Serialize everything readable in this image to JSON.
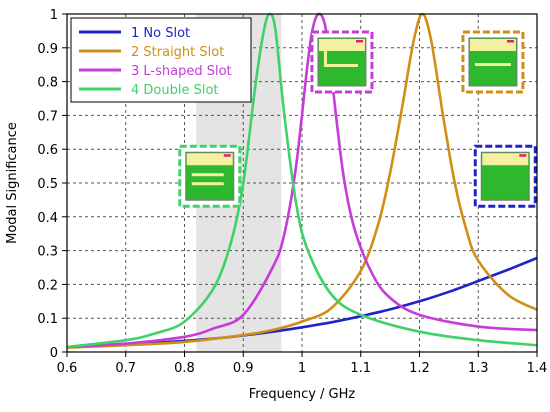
{
  "chart_data": {
    "type": "line",
    "title": "",
    "xlabel": "Frequency / GHz",
    "ylabel": "Modal Significance",
    "xlim": [
      0.6,
      1.4
    ],
    "ylim": [
      0,
      1
    ],
    "xticks": [
      "0.6",
      "0.7",
      "0.8",
      "0.9",
      "1",
      "1.1",
      "1.2",
      "1.3",
      "1.4"
    ],
    "yticks": [
      "0",
      "0.1",
      "0.2",
      "0.3",
      "0.4",
      "0.5",
      "0.6",
      "0.7",
      "0.8",
      "0.9",
      "1"
    ],
    "grid": true,
    "legend_position": "top-left",
    "shaded_band": [
      0.82,
      0.965
    ],
    "series": [
      {
        "name": "1 No Slot",
        "color": "#1f24c8",
        "x": [
          0.6,
          0.65,
          0.7,
          0.75,
          0.8,
          0.85,
          0.9,
          0.95,
          1.0,
          1.05,
          1.1,
          1.15,
          1.2,
          1.25,
          1.3,
          1.35,
          1.4
        ],
        "y": [
          0.015,
          0.018,
          0.022,
          0.027,
          0.033,
          0.04,
          0.049,
          0.06,
          0.073,
          0.088,
          0.106,
          0.126,
          0.15,
          0.178,
          0.21,
          0.243,
          0.278
        ]
      },
      {
        "name": "2 Straight Slot",
        "color": "#d08f14",
        "x": [
          0.6,
          0.7,
          0.8,
          0.9,
          0.95,
          1.0,
          1.05,
          1.1,
          1.13,
          1.15,
          1.17,
          1.19,
          1.205,
          1.22,
          1.24,
          1.26,
          1.28,
          1.3,
          1.35,
          1.4
        ],
        "y": [
          0.013,
          0.02,
          0.03,
          0.05,
          0.065,
          0.09,
          0.13,
          0.24,
          0.38,
          0.53,
          0.72,
          0.92,
          1.0,
          0.92,
          0.7,
          0.5,
          0.36,
          0.27,
          0.17,
          0.125
        ]
      },
      {
        "name": "3 L-shaped Slot",
        "color": "#c53cd8",
        "x": [
          0.6,
          0.7,
          0.8,
          0.85,
          0.9,
          0.95,
          0.97,
          0.99,
          1.01,
          1.02,
          1.03,
          1.04,
          1.05,
          1.07,
          1.09,
          1.12,
          1.15,
          1.2,
          1.3,
          1.4
        ],
        "y": [
          0.015,
          0.025,
          0.045,
          0.07,
          0.11,
          0.25,
          0.35,
          0.55,
          0.86,
          0.97,
          1.0,
          0.96,
          0.82,
          0.53,
          0.36,
          0.23,
          0.16,
          0.11,
          0.075,
          0.065
        ]
      },
      {
        "name": "4 Double Slot",
        "color": "#3fd16a",
        "x": [
          0.6,
          0.7,
          0.75,
          0.8,
          0.85,
          0.88,
          0.9,
          0.92,
          0.935,
          0.945,
          0.955,
          0.97,
          0.99,
          1.01,
          1.05,
          1.1,
          1.2,
          1.3,
          1.4
        ],
        "y": [
          0.015,
          0.035,
          0.055,
          0.09,
          0.19,
          0.33,
          0.5,
          0.78,
          0.95,
          1.0,
          0.95,
          0.7,
          0.44,
          0.3,
          0.17,
          0.11,
          0.06,
          0.035,
          0.02
        ]
      }
    ],
    "insets": [
      {
        "name": "inset-double-slot",
        "border": "#3fd16a",
        "x": 0.843,
        "y": 0.52,
        "slots": 2
      },
      {
        "name": "inset-l-slot",
        "border": "#c53cd8",
        "x": 1.068,
        "y": 0.858,
        "slots": "L"
      },
      {
        "name": "inset-straight-slot",
        "border": "#d08f14",
        "x": 1.325,
        "y": 0.858,
        "slots": 1
      },
      {
        "name": "inset-no-slot",
        "border": "#1f24c8",
        "x": 1.346,
        "y": 0.52,
        "slots": 0
      }
    ]
  }
}
